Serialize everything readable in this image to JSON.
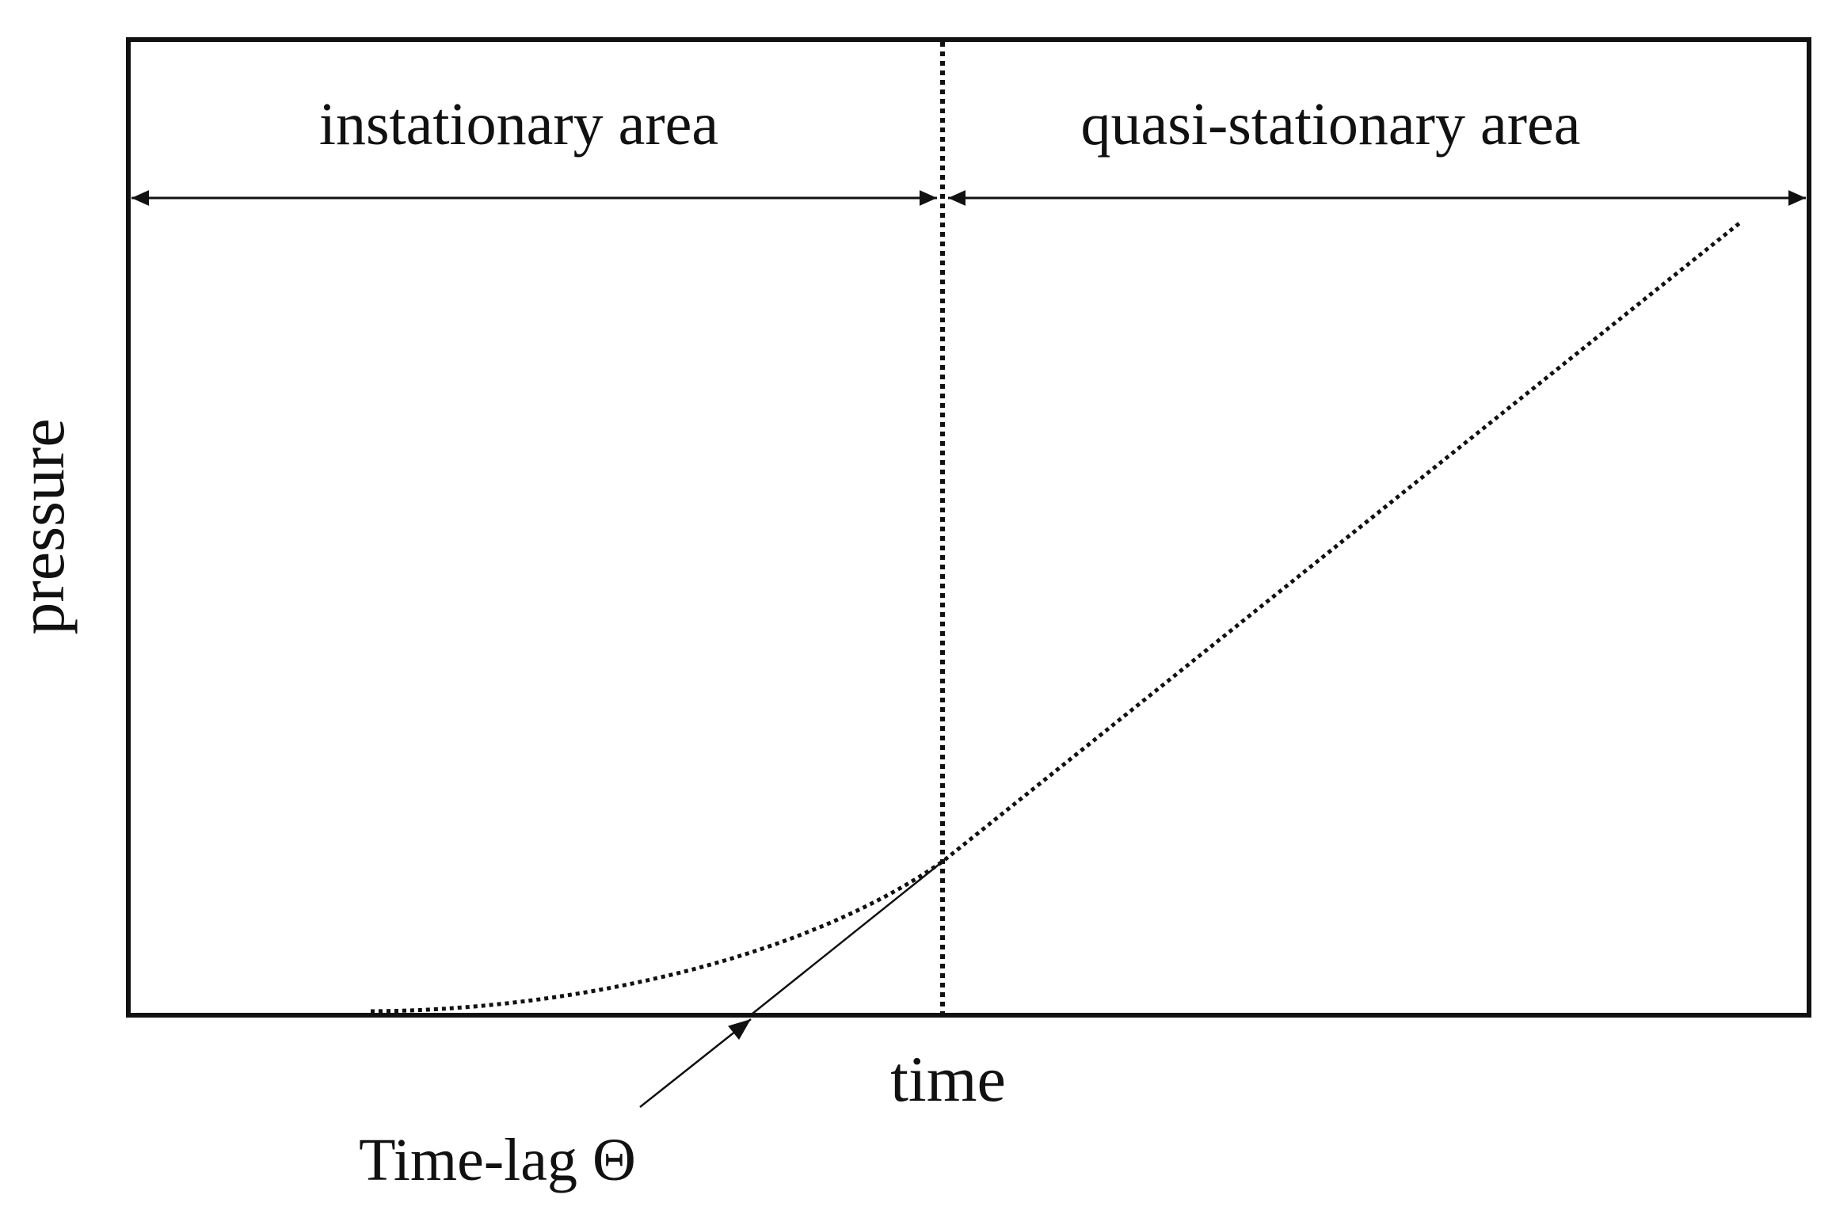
{
  "labels": {
    "region_left": "instationary area",
    "region_right": "quasi-stationary area",
    "x_axis": "time",
    "y_axis": "pressure",
    "annotation": "Time-lag Θ"
  },
  "colors": {
    "ink": "#111111",
    "background": "#ffffff"
  }
}
